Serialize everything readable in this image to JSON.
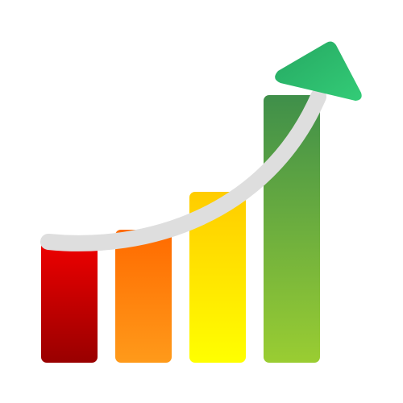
{
  "illustration": {
    "subject": "growth-chart-icon",
    "bars": [
      {
        "level": 1,
        "gradient_top": "#ee0000",
        "gradient_bottom": "#990000"
      },
      {
        "level": 2,
        "gradient_top": "#ff6a00",
        "gradient_bottom": "#ff9a1a"
      },
      {
        "level": 3,
        "gradient_top": "#ffcc00",
        "gradient_bottom": "#ffff00"
      },
      {
        "level": 4,
        "gradient_top": "#3f8f4a",
        "gradient_bottom": "#9acd32"
      }
    ],
    "curve_color": "#dedede",
    "arrow_head_color": "#2dbf6e",
    "background": "#ffffff"
  }
}
